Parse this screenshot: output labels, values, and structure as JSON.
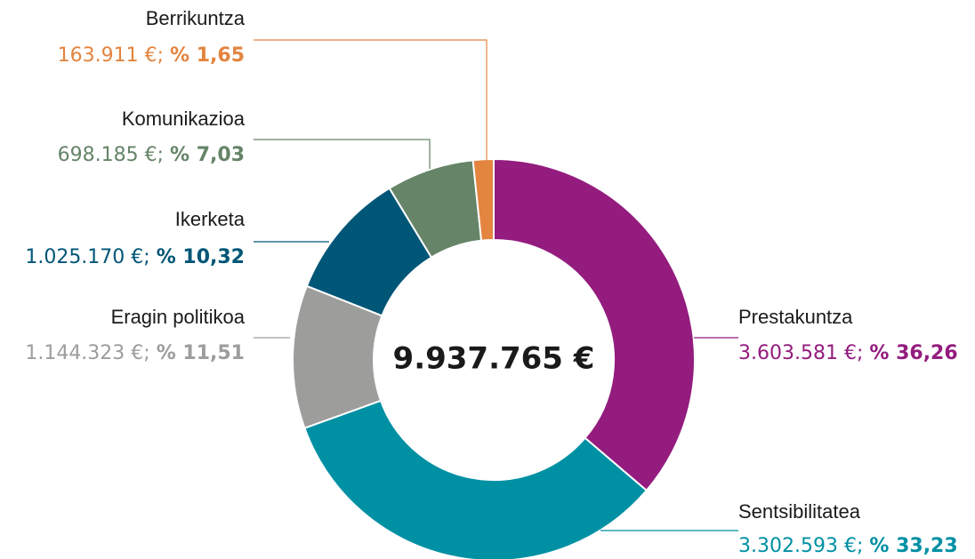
{
  "chart_data": {
    "type": "donut",
    "categories": [
      "Prestakuntza",
      "Sentsibilitatea",
      "Eragin politikoa",
      "Ikerketa",
      "Komunikazioa",
      "Berrikuntza"
    ],
    "values": [
      36.26,
      33.23,
      11.51,
      10.32,
      7.03,
      1.65
    ],
    "value_labels": [
      "% 36,26",
      "% 33,23",
      "% 11,51",
      "% 10,32",
      "% 7,03",
      "% 1,65"
    ],
    "amounts": [
      3603581,
      3302593,
      1144323,
      1025170,
      698185,
      163911
    ],
    "amount_labels": [
      "3.603.581 €;",
      "3.302.593 €;",
      "1.144.323 €;",
      "1.025.170 €;",
      "698.185 €;",
      "163.911 €;"
    ],
    "colors": [
      "#931c7e",
      "#0090a4",
      "#9d9d9c",
      "#005677",
      "#658468",
      "#e3843f"
    ],
    "total": 9937765,
    "total_label": "9.937.765 €"
  }
}
